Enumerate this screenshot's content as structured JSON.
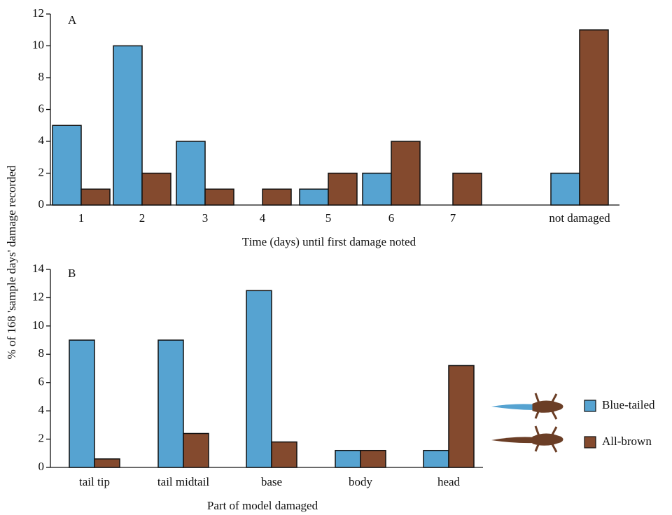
{
  "chart_data": [
    {
      "type": "bar",
      "panel_label": "A",
      "xlabel": "Time (days) until first damage noted",
      "categories": [
        "1",
        "2",
        "3",
        "4",
        "5",
        "6",
        "7",
        "not damaged"
      ],
      "series": [
        {
          "color": "#56a3d1",
          "values": [
            5,
            10,
            4,
            0,
            1,
            2,
            0,
            2
          ]
        },
        {
          "color": "#844a2e",
          "values": [
            1,
            2,
            1,
            1,
            2,
            4,
            2,
            11
          ]
        }
      ],
      "ylim": [
        0,
        12
      ],
      "yticks": [
        0,
        2,
        4,
        6,
        8,
        10,
        12
      ]
    },
    {
      "type": "bar",
      "panel_label": "B",
      "xlabel": "Part of model damaged",
      "ylabel": "% of 168 'sample days' damage recorded",
      "categories": [
        "tail tip",
        "tail midtail",
        "base",
        "body",
        "head"
      ],
      "series": [
        {
          "name": "Blue-tailed",
          "color": "#56a3d1",
          "values": [
            9,
            9,
            12.5,
            1.2,
            1.2
          ]
        },
        {
          "name": "All-brown",
          "color": "#844a2e",
          "values": [
            0.6,
            2.4,
            1.8,
            1.2,
            7.2
          ]
        }
      ],
      "ylim": [
        0,
        14
      ],
      "yticks": [
        0,
        2,
        4,
        6,
        8,
        10,
        12,
        14
      ]
    }
  ]
}
